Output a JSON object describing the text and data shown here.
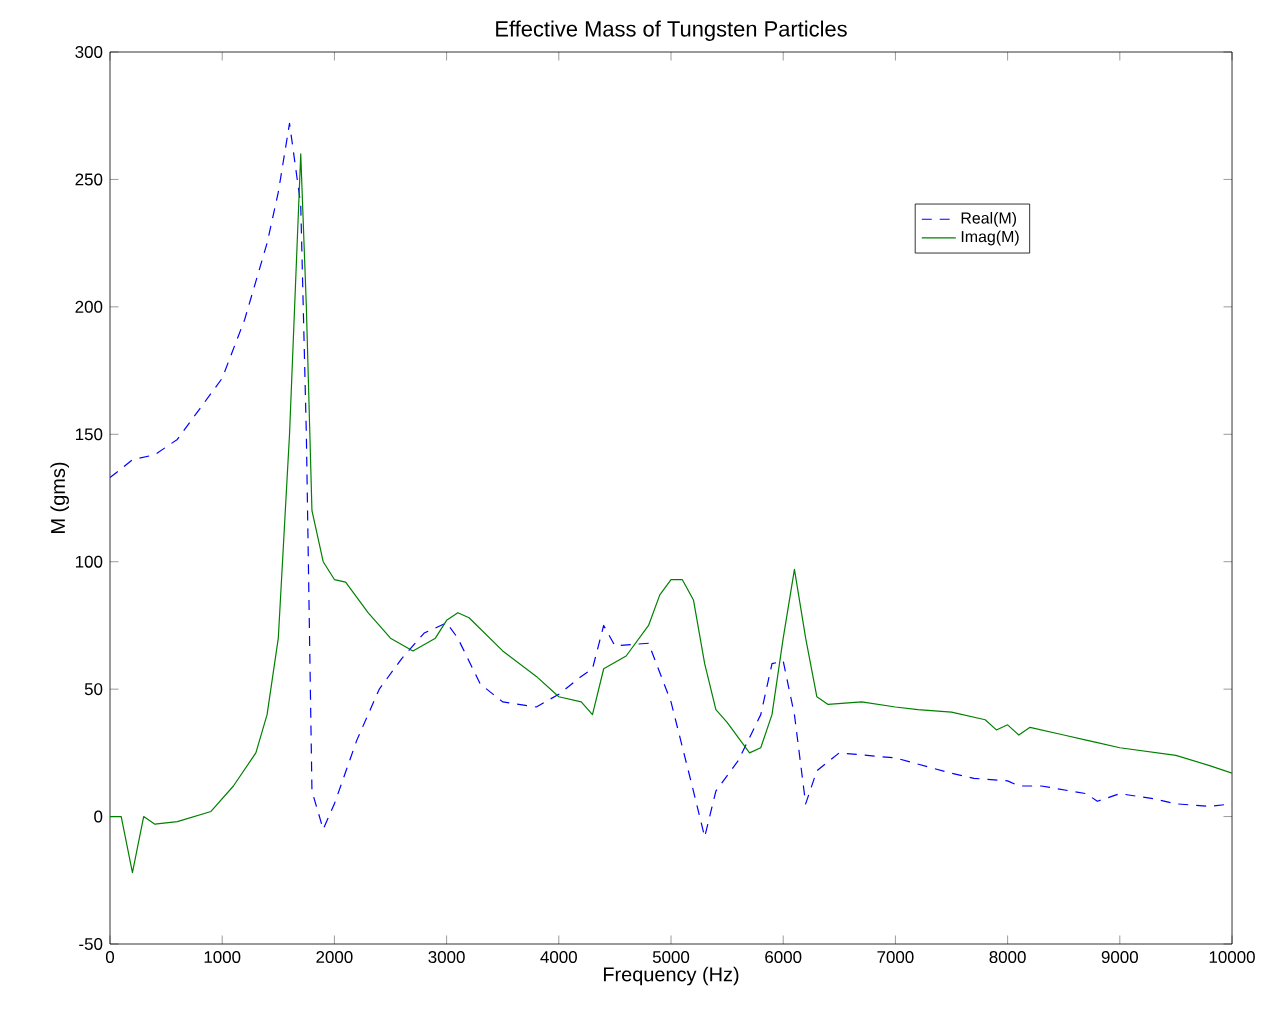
{
  "chart_data": {
    "type": "line",
    "title": "Effective Mass of Tungsten Particles",
    "xlabel": "Frequency (Hz)",
    "ylabel": "M (gms)",
    "xlim": [
      0,
      10000
    ],
    "ylim": [
      -50,
      300
    ],
    "xticks": [
      0,
      1000,
      2000,
      3000,
      4000,
      5000,
      6000,
      7000,
      8000,
      9000,
      10000
    ],
    "yticks": [
      -50,
      0,
      50,
      100,
      150,
      200,
      250,
      300
    ],
    "legend": "top right",
    "grid": false,
    "marker": "none",
    "series": [
      {
        "name": "Real(M)",
        "color": "#0000ff",
        "line_style": "dashed",
        "x": [
          0,
          200,
          400,
          600,
          800,
          1000,
          1200,
          1400,
          1500,
          1600,
          1700,
          1750,
          1800,
          1900,
          2000,
          2200,
          2400,
          2600,
          2800,
          3000,
          3100,
          3300,
          3500,
          3800,
          4000,
          4200,
          4300,
          4400,
          4500,
          4800,
          5000,
          5200,
          5300,
          5400,
          5600,
          5800,
          5900,
          6000,
          6100,
          6200,
          6300,
          6500,
          7000,
          7500,
          7700,
          8000,
          8100,
          8300,
          8700,
          8800,
          9000,
          9300,
          9500,
          9800,
          10000
        ],
        "values": [
          133,
          140,
          142,
          148,
          160,
          172,
          195,
          225,
          245,
          272,
          240,
          150,
          10,
          -5,
          5,
          30,
          50,
          62,
          72,
          76,
          70,
          52,
          45,
          43,
          48,
          55,
          58,
          75,
          67,
          68,
          45,
          10,
          -8,
          10,
          22,
          40,
          60,
          61,
          40,
          5,
          18,
          25,
          23,
          17,
          15,
          14,
          12,
          12,
          9,
          6,
          9,
          7,
          5,
          4,
          5
        ]
      },
      {
        "name": "Imag(M)",
        "color": "#008000",
        "line_style": "solid",
        "x": [
          0,
          100,
          200,
          300,
          400,
          600,
          900,
          1100,
          1300,
          1400,
          1500,
          1600,
          1700,
          1750,
          1800,
          1900,
          2000,
          2100,
          2300,
          2500,
          2700,
          2900,
          3000,
          3100,
          3200,
          3500,
          3800,
          4000,
          4200,
          4300,
          4400,
          4600,
          4800,
          4900,
          5000,
          5100,
          5200,
          5300,
          5400,
          5500,
          5700,
          5800,
          5900,
          6000,
          6100,
          6200,
          6300,
          6400,
          6700,
          7000,
          7200,
          7500,
          7800,
          7900,
          8000,
          8100,
          8200,
          8500,
          8700,
          8800,
          9000,
          9500,
          9800,
          10000
        ],
        "values": [
          0,
          0,
          -22,
          0,
          -3,
          -2,
          2,
          12,
          25,
          40,
          70,
          150,
          260,
          200,
          120,
          100,
          93,
          92,
          80,
          70,
          65,
          70,
          77,
          80,
          78,
          65,
          55,
          47,
          45,
          40,
          58,
          63,
          75,
          87,
          93,
          93,
          85,
          60,
          42,
          37,
          25,
          27,
          40,
          70,
          97,
          70,
          47,
          44,
          45,
          43,
          42,
          41,
          38,
          34,
          36,
          32,
          35,
          32,
          30,
          29,
          27,
          24,
          20,
          17
        ]
      }
    ]
  }
}
